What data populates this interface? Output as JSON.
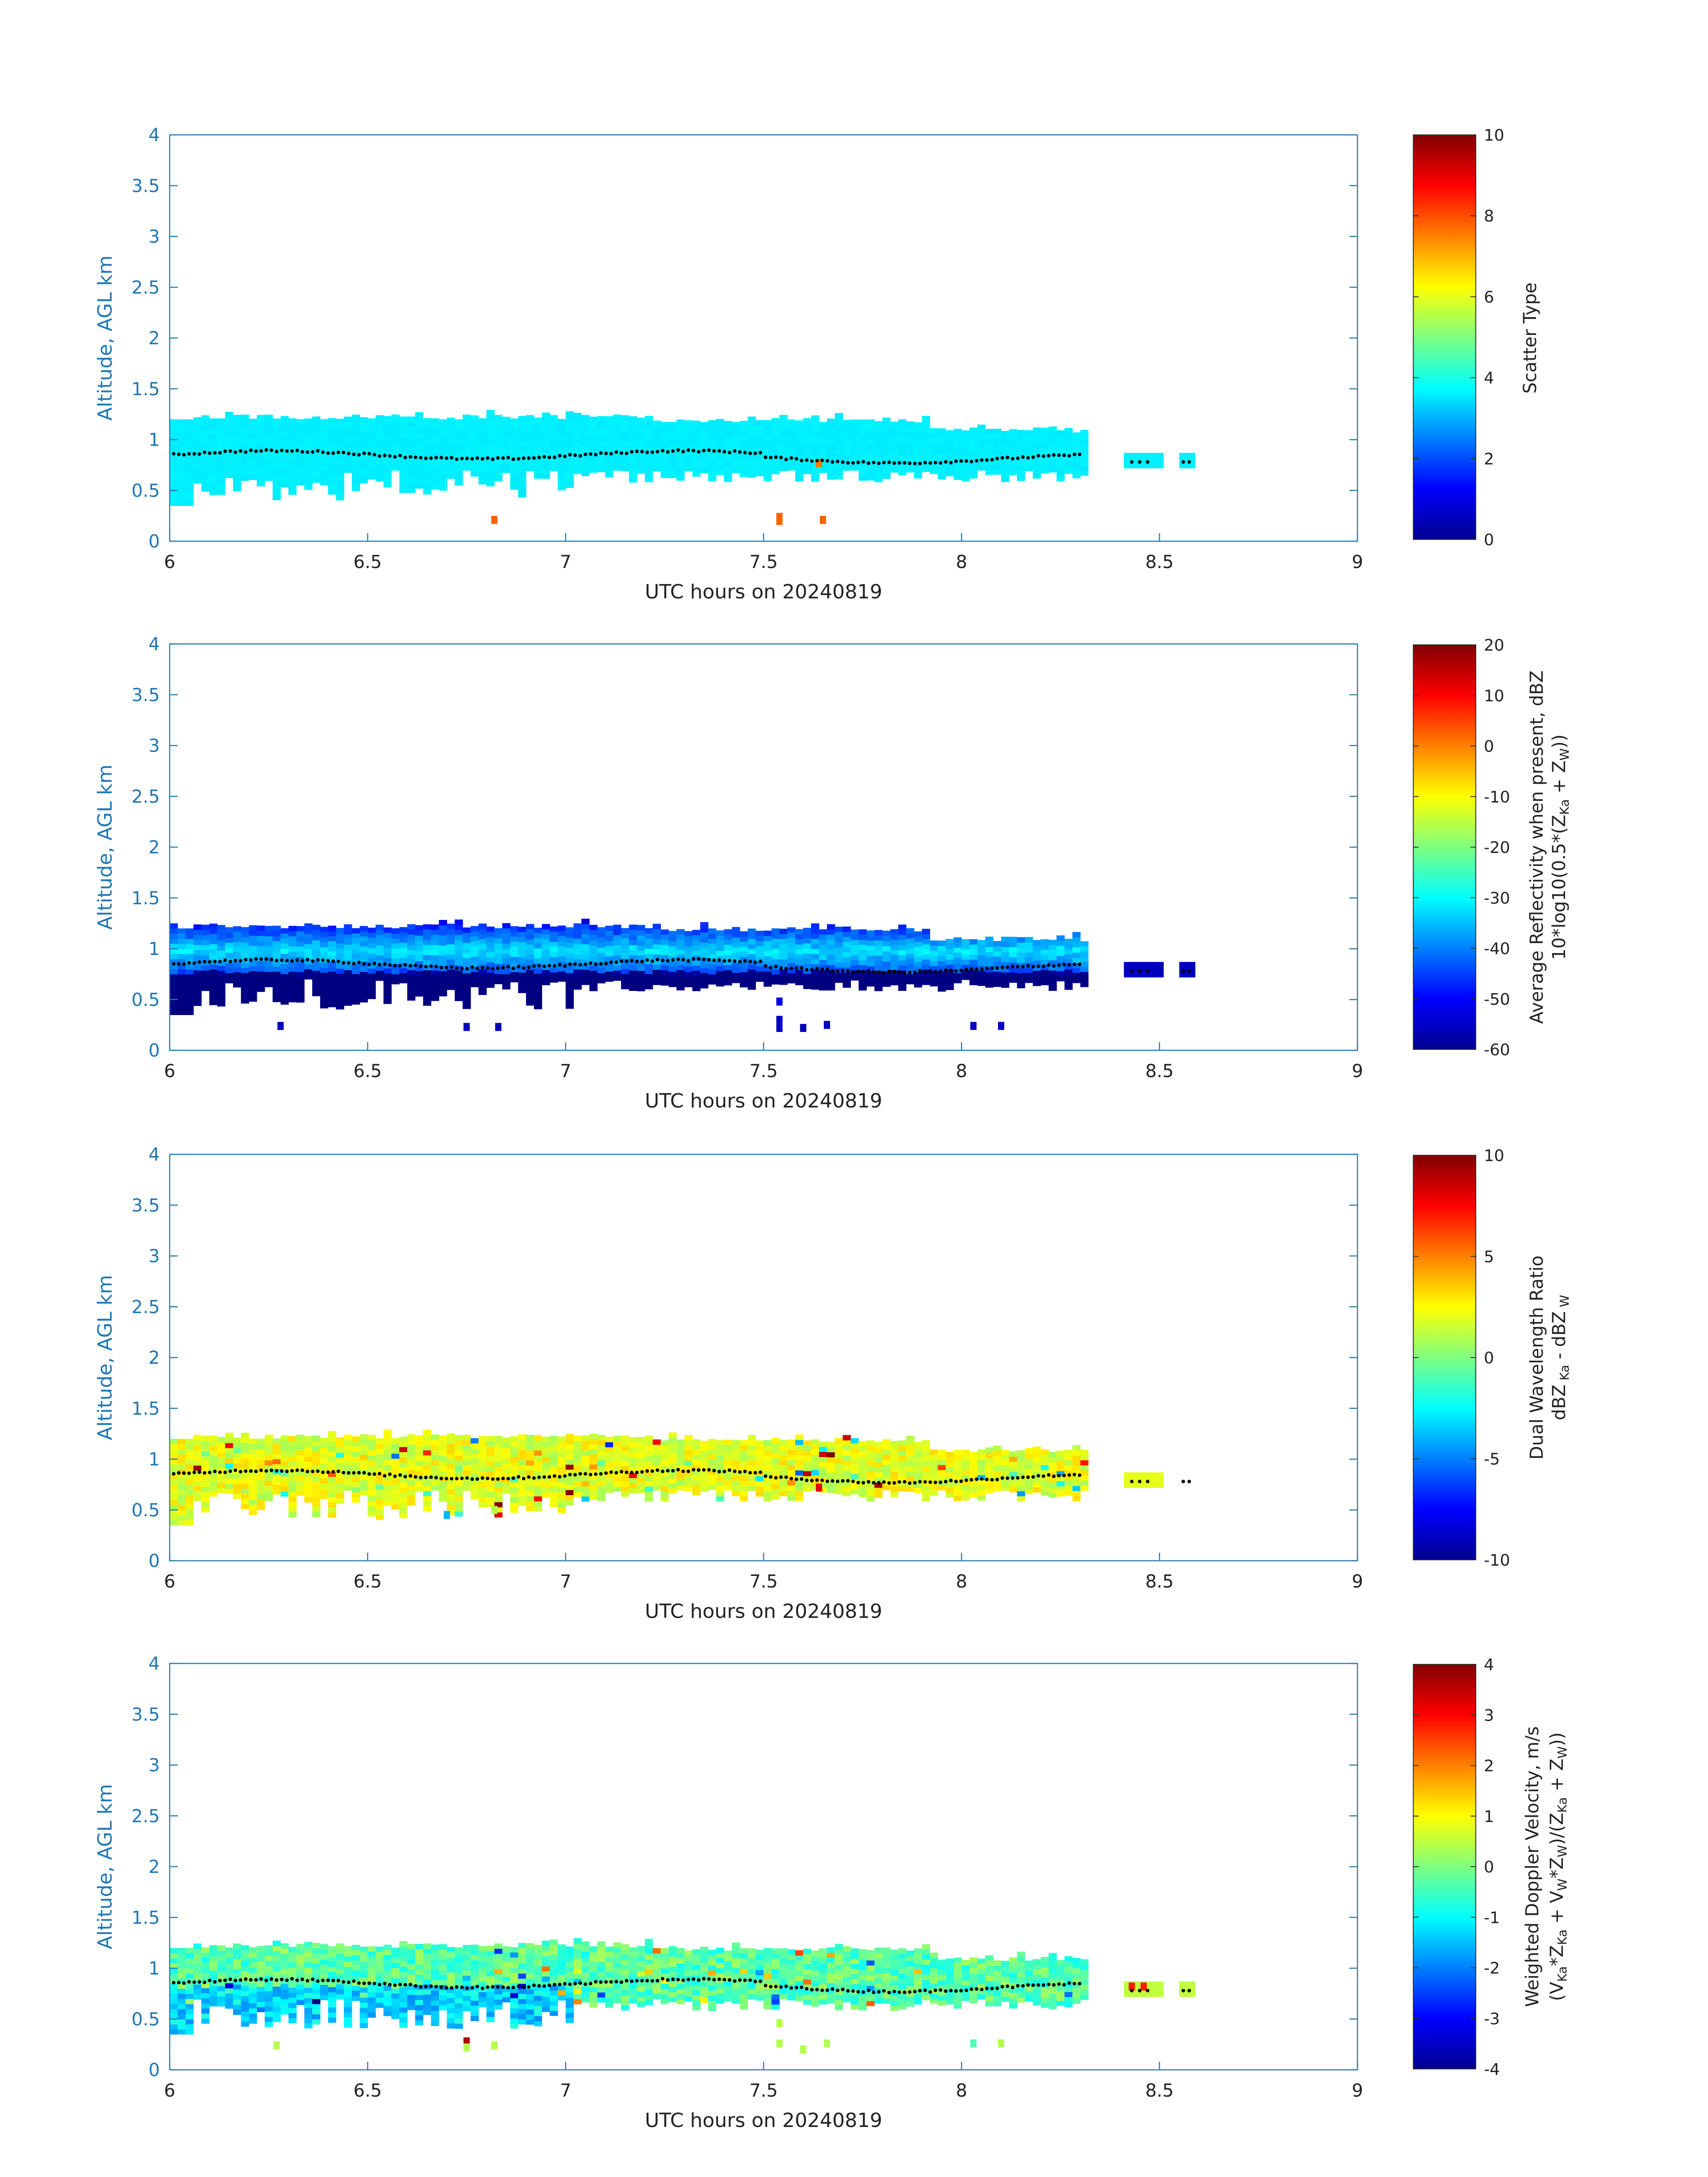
{
  "figure": {
    "xlabel": "UTC hours on 20240819",
    "ylabel": "Altitude, AGL km"
  },
  "chart_data": [
    {
      "type": "heatmap",
      "id": "scatter-type",
      "xlabel": "UTC hours on 20240819",
      "ylabel": "Altitude, AGL km",
      "xlim": [
        6,
        9
      ],
      "ylim": [
        0,
        4
      ],
      "xticks": [
        "6",
        "6.5",
        "7",
        "7.5",
        "8",
        "8.5",
        "9"
      ],
      "yticks": [
        "0",
        "0.5",
        "1",
        "1.5",
        "2",
        "2.5",
        "3",
        "3.5",
        "4"
      ],
      "colorbar": {
        "label_lines": [
          "Scatter Type"
        ],
        "clim": [
          0,
          10
        ],
        "ticks": [
          "0",
          "2",
          "4",
          "6",
          "8",
          "10"
        ],
        "colormap": "jet"
      },
      "cloud_value": 3.6,
      "colored_points": [
        {
          "x": 6.82,
          "y": 0.21,
          "value": 7.8
        },
        {
          "x": 7.54,
          "y": 0.24,
          "value": 7.8
        },
        {
          "x": 7.54,
          "y": 0.2,
          "value": 7.8
        },
        {
          "x": 7.65,
          "y": 0.21,
          "value": 7.8
        },
        {
          "x": 7.64,
          "y": 0.77,
          "value": 7.6
        }
      ]
    },
    {
      "type": "heatmap",
      "id": "reflectivity",
      "xlabel": "UTC hours on 20240819",
      "ylabel": "Altitude, AGL km",
      "xlim": [
        6,
        9
      ],
      "ylim": [
        0,
        4
      ],
      "xticks": [
        "6",
        "6.5",
        "7",
        "7.5",
        "8",
        "8.5",
        "9"
      ],
      "yticks": [
        "0",
        "0.5",
        "1",
        "1.5",
        "2",
        "2.5",
        "3",
        "3.5",
        "4"
      ],
      "colorbar": {
        "label_lines": [
          "Average Reflectivity when present, dBZ",
          "10*log10(0.5*(Z_Ka + Z_W))"
        ],
        "clim": [
          -60,
          20
        ],
        "ticks": [
          "-60",
          "-50",
          "-40",
          "-30",
          "-20",
          "-10",
          "0",
          "10",
          "20"
        ],
        "colormap": "jet"
      },
      "colored_points": [
        {
          "x": 6.28,
          "y": 0.24,
          "value": -55
        },
        {
          "x": 6.75,
          "y": 0.23,
          "value": -55
        },
        {
          "x": 6.83,
          "y": 0.23,
          "value": -55
        },
        {
          "x": 7.54,
          "y": 0.48,
          "value": -52
        },
        {
          "x": 7.54,
          "y": 0.3,
          "value": -55
        },
        {
          "x": 7.54,
          "y": 0.22,
          "value": -55
        },
        {
          "x": 7.6,
          "y": 0.22,
          "value": -55
        },
        {
          "x": 7.66,
          "y": 0.25,
          "value": -55
        },
        {
          "x": 8.03,
          "y": 0.24,
          "value": -55
        },
        {
          "x": 8.1,
          "y": 0.24,
          "value": -55
        }
      ]
    },
    {
      "type": "heatmap",
      "id": "dual-wavelength-ratio",
      "xlabel": "UTC hours on 20240819",
      "ylabel": "Altitude, AGL km",
      "xlim": [
        6,
        9
      ],
      "ylim": [
        0,
        4
      ],
      "xticks": [
        "6",
        "6.5",
        "7",
        "7.5",
        "8",
        "8.5",
        "9"
      ],
      "yticks": [
        "0",
        "0.5",
        "1",
        "1.5",
        "2",
        "2.5",
        "3",
        "3.5",
        "4"
      ],
      "colorbar": {
        "label_lines": [
          "Dual Wavelength Ratio",
          "dBZ Ka - dBZ W"
        ],
        "clim": [
          -10,
          10
        ],
        "ticks": [
          "-10",
          "-5",
          "0",
          "5",
          "10"
        ],
        "colormap": "jet"
      },
      "colored_points": [
        {
          "x": 6.7,
          "y": 0.45,
          "value": -4
        },
        {
          "x": 6.82,
          "y": 0.5,
          "value": 1
        },
        {
          "x": 7.64,
          "y": 0.72,
          "value": 8
        },
        {
          "x": 8.45,
          "y": 0.79,
          "value": 2
        }
      ]
    },
    {
      "type": "heatmap",
      "id": "doppler-velocity",
      "xlabel": "UTC hours on 20240819",
      "ylabel": "Altitude, AGL km",
      "xlim": [
        6,
        9
      ],
      "ylim": [
        0,
        4
      ],
      "xticks": [
        "6",
        "6.5",
        "7",
        "7.5",
        "8",
        "8.5",
        "9"
      ],
      "yticks": [
        "0",
        "0.5",
        "1",
        "1.5",
        "2",
        "2.5",
        "3",
        "3.5",
        "4"
      ],
      "colorbar": {
        "label_lines": [
          "Weighted Doppler Velocity, m/s",
          "(V_Ka*Z_Ka + V_W*Z_W)/(Z_Ka + Z_W)"
        ],
        "clim": [
          -4,
          4
        ],
        "ticks": [
          "-4",
          "-3",
          "-2",
          "-1",
          "0",
          "1",
          "2",
          "3",
          "4"
        ],
        "colormap": "jet"
      },
      "colored_points": [
        {
          "x": 6.27,
          "y": 0.24,
          "value": 0.4
        },
        {
          "x": 6.75,
          "y": 0.28,
          "value": 3.6
        },
        {
          "x": 6.75,
          "y": 0.22,
          "value": 0.4
        },
        {
          "x": 6.82,
          "y": 0.24,
          "value": 0.4
        },
        {
          "x": 7.54,
          "y": 0.46,
          "value": 0.4
        },
        {
          "x": 7.54,
          "y": 0.26,
          "value": 0.4
        },
        {
          "x": 7.6,
          "y": 0.2,
          "value": 0.4
        },
        {
          "x": 7.66,
          "y": 0.26,
          "value": 0.4
        },
        {
          "x": 8.03,
          "y": 0.26,
          "value": -0.4
        },
        {
          "x": 8.1,
          "y": 0.26,
          "value": 0.4
        },
        {
          "x": 8.43,
          "y": 0.82,
          "value": 2.8
        },
        {
          "x": 8.46,
          "y": 0.82,
          "value": 2.8
        }
      ]
    }
  ]
}
